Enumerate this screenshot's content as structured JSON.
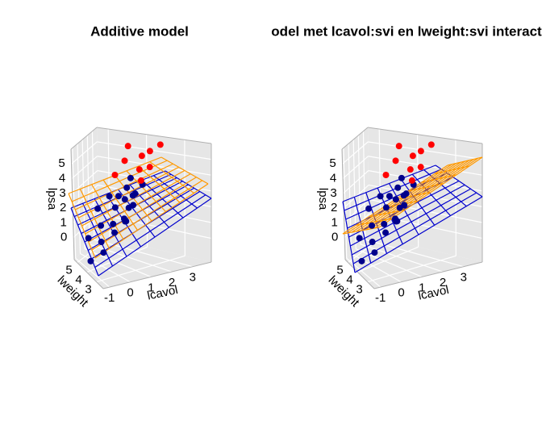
{
  "chart_data": [
    {
      "type": "scatter3d",
      "title": "Additive model",
      "xlabel": "lcavol",
      "ylabel": "lweight",
      "zlabel": "lpsa",
      "xlim": [
        -1.3,
        3.9
      ],
      "xticks": [
        -1,
        0,
        1,
        2,
        3
      ],
      "ylim": [
        2.3,
        5.3
      ],
      "yticks": [
        3,
        4,
        5
      ],
      "zlim": [
        -1.5,
        6
      ],
      "zticks": [
        0,
        1,
        2,
        3,
        4,
        5
      ],
      "grid": true,
      "series": [
        {
          "color": "#00008b",
          "x": [
            -1.35,
            -0.8,
            -0.5,
            -1.2,
            0.2,
            0.5,
            -0.3,
            1.0,
            0.7,
            1.2,
            1.5,
            0.0,
            1.8,
            1.3,
            2.0,
            0.9,
            2.2,
            1.6,
            2.5,
            1.1,
            2.8,
            0.4
          ],
          "y": [
            3.5,
            3.1,
            3.6,
            3.9,
            3.4,
            3.7,
            3.8,
            3.5,
            3.2,
            4.0,
            3.6,
            4.2,
            3.9,
            3.3,
            3.7,
            4.1,
            4.0,
            3.4,
            3.6,
            3.8,
            4.1,
            3.0
          ],
          "z": [
            -0.43,
            0.2,
            0.5,
            0.8,
            1.0,
            1.3,
            1.4,
            1.6,
            1.7,
            2.0,
            2.1,
            2.2,
            2.4,
            2.5,
            2.7,
            2.8,
            3.0,
            3.1,
            3.3,
            2.9,
            3.4,
            1.9
          ]
        },
        {
          "color": "#ff0000",
          "x": [
            2.4,
            3.0,
            2.8,
            3.5,
            1.9,
            3.3,
            3.8,
            2.6,
            3.2
          ],
          "y": [
            3.6,
            3.9,
            3.5,
            4.0,
            4.3,
            3.7,
            3.6,
            4.1,
            4.4
          ],
          "z": [
            3.6,
            4.0,
            4.4,
            4.7,
            3.8,
            5.2,
            5.5,
            5.6,
            4.3
          ]
        }
      ]
    },
    {
      "type": "scatter3d",
      "title": "Model met lcavol:svi en lweight:svi interactie",
      "xlabel": "lcavol",
      "ylabel": "lweight",
      "zlabel": "lpsa",
      "xlim": [
        -1.3,
        3.9
      ],
      "xticks": [
        -1,
        0,
        1,
        2,
        3
      ],
      "ylim": [
        2.3,
        5.3
      ],
      "yticks": [
        3,
        4,
        5
      ],
      "zlim": [
        -1.5,
        6
      ],
      "zticks": [
        0,
        1,
        2,
        3,
        4,
        5
      ],
      "grid": true,
      "series": [
        {
          "color": "#00008b",
          "x": [
            -1.35,
            -0.8,
            -0.5,
            -1.2,
            0.2,
            0.5,
            -0.3,
            1.0,
            0.7,
            1.2,
            1.5,
            0.0,
            1.8,
            1.3,
            2.0,
            0.9,
            2.2,
            1.6,
            2.5,
            1.1,
            2.8,
            0.4
          ],
          "y": [
            3.5,
            3.1,
            3.6,
            3.9,
            3.4,
            3.7,
            3.8,
            3.5,
            3.2,
            4.0,
            3.6,
            4.2,
            3.9,
            3.3,
            3.7,
            4.1,
            4.0,
            3.4,
            3.6,
            3.8,
            4.1,
            3.0
          ],
          "z": [
            -0.43,
            0.2,
            0.5,
            0.8,
            1.0,
            1.3,
            1.4,
            1.6,
            1.7,
            2.0,
            2.1,
            2.2,
            2.4,
            2.5,
            2.7,
            2.8,
            3.0,
            3.1,
            3.3,
            2.9,
            3.4,
            1.9
          ]
        },
        {
          "color": "#ff0000",
          "x": [
            2.4,
            3.0,
            2.8,
            3.5,
            1.9,
            3.3,
            3.8,
            2.6,
            3.2
          ],
          "y": [
            3.6,
            3.9,
            3.5,
            4.0,
            4.3,
            3.7,
            3.6,
            4.1,
            4.4
          ],
          "z": [
            3.6,
            4.0,
            4.4,
            4.7,
            3.8,
            5.2,
            5.5,
            5.6,
            4.3
          ]
        }
      ]
    }
  ]
}
